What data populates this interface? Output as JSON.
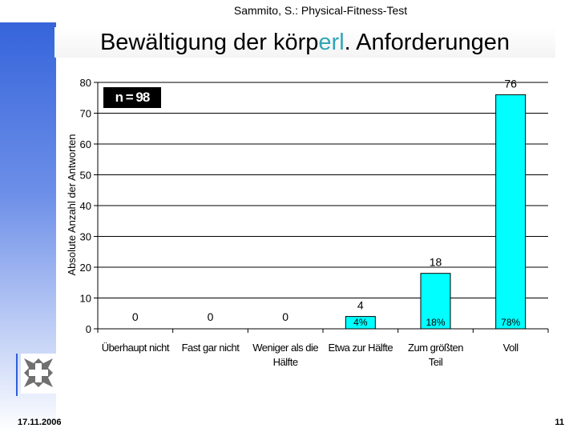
{
  "header": {
    "text": "Sammito, S.: Physical-Fitness-Test"
  },
  "title": {
    "part1": "Bewältigung der körp",
    "part2": "erl",
    "part3": ". Anforderungen"
  },
  "footer": {
    "date": "17.11.2006",
    "page": "11"
  },
  "colors": {
    "bar": "#00ffff",
    "sidebar": "#2e5fd9",
    "highlight": "#2fa6b5"
  },
  "chart_data": {
    "type": "bar",
    "n_label": "n = 98",
    "ylabel": "Absolute Anzahl der Antworten",
    "ylim": [
      0,
      80
    ],
    "yticks": [
      "0",
      "10",
      "20",
      "30",
      "40",
      "50",
      "60",
      "70",
      "80"
    ],
    "categories": [
      [
        "Überhaupt nicht"
      ],
      [
        "Fast gar nicht"
      ],
      [
        "Weniger als die",
        "Hälfte"
      ],
      [
        "Etwa zur Hälfte"
      ],
      [
        "Zum größten",
        "Teil"
      ],
      [
        "Voll"
      ]
    ],
    "values": [
      0,
      0,
      0,
      4,
      18,
      76
    ],
    "value_labels": [
      "0",
      "0",
      "0",
      "4",
      "18",
      "76"
    ],
    "percent_labels": [
      "",
      "",
      "",
      "4%",
      "18%",
      "78%"
    ],
    "grid": true
  }
}
